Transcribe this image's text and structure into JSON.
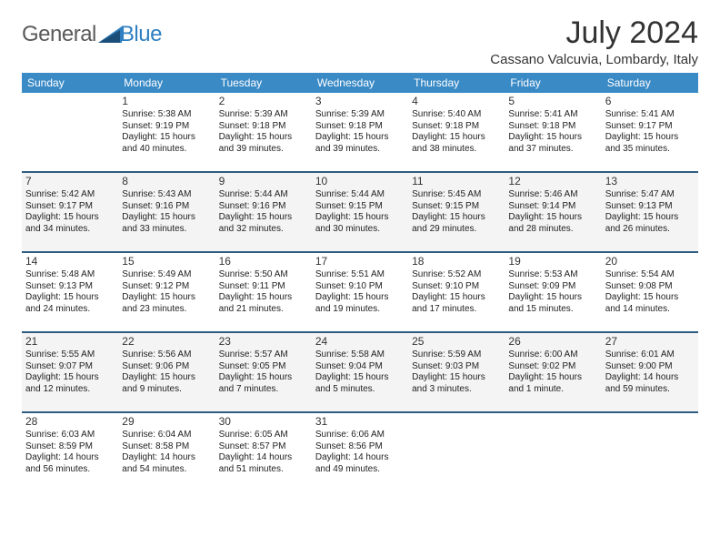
{
  "logo": {
    "part1": "General",
    "part2": "Blue"
  },
  "title": "July 2024",
  "location": "Cassano Valcuvia, Lombardy, Italy",
  "day_headers": [
    "Sunday",
    "Monday",
    "Tuesday",
    "Wednesday",
    "Thursday",
    "Friday",
    "Saturday"
  ],
  "header_bg": "#3a8ac6",
  "row_border_color": "#2f5c80",
  "alt_row_bg": "#f4f4f4",
  "weeks": [
    [
      null,
      {
        "n": "1",
        "sr": "Sunrise: 5:38 AM",
        "ss": "Sunset: 9:19 PM",
        "d1": "Daylight: 15 hours",
        "d2": "and 40 minutes."
      },
      {
        "n": "2",
        "sr": "Sunrise: 5:39 AM",
        "ss": "Sunset: 9:18 PM",
        "d1": "Daylight: 15 hours",
        "d2": "and 39 minutes."
      },
      {
        "n": "3",
        "sr": "Sunrise: 5:39 AM",
        "ss": "Sunset: 9:18 PM",
        "d1": "Daylight: 15 hours",
        "d2": "and 39 minutes."
      },
      {
        "n": "4",
        "sr": "Sunrise: 5:40 AM",
        "ss": "Sunset: 9:18 PM",
        "d1": "Daylight: 15 hours",
        "d2": "and 38 minutes."
      },
      {
        "n": "5",
        "sr": "Sunrise: 5:41 AM",
        "ss": "Sunset: 9:18 PM",
        "d1": "Daylight: 15 hours",
        "d2": "and 37 minutes."
      },
      {
        "n": "6",
        "sr": "Sunrise: 5:41 AM",
        "ss": "Sunset: 9:17 PM",
        "d1": "Daylight: 15 hours",
        "d2": "and 35 minutes."
      }
    ],
    [
      {
        "n": "7",
        "sr": "Sunrise: 5:42 AM",
        "ss": "Sunset: 9:17 PM",
        "d1": "Daylight: 15 hours",
        "d2": "and 34 minutes."
      },
      {
        "n": "8",
        "sr": "Sunrise: 5:43 AM",
        "ss": "Sunset: 9:16 PM",
        "d1": "Daylight: 15 hours",
        "d2": "and 33 minutes."
      },
      {
        "n": "9",
        "sr": "Sunrise: 5:44 AM",
        "ss": "Sunset: 9:16 PM",
        "d1": "Daylight: 15 hours",
        "d2": "and 32 minutes."
      },
      {
        "n": "10",
        "sr": "Sunrise: 5:44 AM",
        "ss": "Sunset: 9:15 PM",
        "d1": "Daylight: 15 hours",
        "d2": "and 30 minutes."
      },
      {
        "n": "11",
        "sr": "Sunrise: 5:45 AM",
        "ss": "Sunset: 9:15 PM",
        "d1": "Daylight: 15 hours",
        "d2": "and 29 minutes."
      },
      {
        "n": "12",
        "sr": "Sunrise: 5:46 AM",
        "ss": "Sunset: 9:14 PM",
        "d1": "Daylight: 15 hours",
        "d2": "and 28 minutes."
      },
      {
        "n": "13",
        "sr": "Sunrise: 5:47 AM",
        "ss": "Sunset: 9:13 PM",
        "d1": "Daylight: 15 hours",
        "d2": "and 26 minutes."
      }
    ],
    [
      {
        "n": "14",
        "sr": "Sunrise: 5:48 AM",
        "ss": "Sunset: 9:13 PM",
        "d1": "Daylight: 15 hours",
        "d2": "and 24 minutes."
      },
      {
        "n": "15",
        "sr": "Sunrise: 5:49 AM",
        "ss": "Sunset: 9:12 PM",
        "d1": "Daylight: 15 hours",
        "d2": "and 23 minutes."
      },
      {
        "n": "16",
        "sr": "Sunrise: 5:50 AM",
        "ss": "Sunset: 9:11 PM",
        "d1": "Daylight: 15 hours",
        "d2": "and 21 minutes."
      },
      {
        "n": "17",
        "sr": "Sunrise: 5:51 AM",
        "ss": "Sunset: 9:10 PM",
        "d1": "Daylight: 15 hours",
        "d2": "and 19 minutes."
      },
      {
        "n": "18",
        "sr": "Sunrise: 5:52 AM",
        "ss": "Sunset: 9:10 PM",
        "d1": "Daylight: 15 hours",
        "d2": "and 17 minutes."
      },
      {
        "n": "19",
        "sr": "Sunrise: 5:53 AM",
        "ss": "Sunset: 9:09 PM",
        "d1": "Daylight: 15 hours",
        "d2": "and 15 minutes."
      },
      {
        "n": "20",
        "sr": "Sunrise: 5:54 AM",
        "ss": "Sunset: 9:08 PM",
        "d1": "Daylight: 15 hours",
        "d2": "and 14 minutes."
      }
    ],
    [
      {
        "n": "21",
        "sr": "Sunrise: 5:55 AM",
        "ss": "Sunset: 9:07 PM",
        "d1": "Daylight: 15 hours",
        "d2": "and 12 minutes."
      },
      {
        "n": "22",
        "sr": "Sunrise: 5:56 AM",
        "ss": "Sunset: 9:06 PM",
        "d1": "Daylight: 15 hours",
        "d2": "and 9 minutes."
      },
      {
        "n": "23",
        "sr": "Sunrise: 5:57 AM",
        "ss": "Sunset: 9:05 PM",
        "d1": "Daylight: 15 hours",
        "d2": "and 7 minutes."
      },
      {
        "n": "24",
        "sr": "Sunrise: 5:58 AM",
        "ss": "Sunset: 9:04 PM",
        "d1": "Daylight: 15 hours",
        "d2": "and 5 minutes."
      },
      {
        "n": "25",
        "sr": "Sunrise: 5:59 AM",
        "ss": "Sunset: 9:03 PM",
        "d1": "Daylight: 15 hours",
        "d2": "and 3 minutes."
      },
      {
        "n": "26",
        "sr": "Sunrise: 6:00 AM",
        "ss": "Sunset: 9:02 PM",
        "d1": "Daylight: 15 hours",
        "d2": "and 1 minute."
      },
      {
        "n": "27",
        "sr": "Sunrise: 6:01 AM",
        "ss": "Sunset: 9:00 PM",
        "d1": "Daylight: 14 hours",
        "d2": "and 59 minutes."
      }
    ],
    [
      {
        "n": "28",
        "sr": "Sunrise: 6:03 AM",
        "ss": "Sunset: 8:59 PM",
        "d1": "Daylight: 14 hours",
        "d2": "and 56 minutes."
      },
      {
        "n": "29",
        "sr": "Sunrise: 6:04 AM",
        "ss": "Sunset: 8:58 PM",
        "d1": "Daylight: 14 hours",
        "d2": "and 54 minutes."
      },
      {
        "n": "30",
        "sr": "Sunrise: 6:05 AM",
        "ss": "Sunset: 8:57 PM",
        "d1": "Daylight: 14 hours",
        "d2": "and 51 minutes."
      },
      {
        "n": "31",
        "sr": "Sunrise: 6:06 AM",
        "ss": "Sunset: 8:56 PM",
        "d1": "Daylight: 14 hours",
        "d2": "and 49 minutes."
      },
      null,
      null,
      null
    ]
  ]
}
